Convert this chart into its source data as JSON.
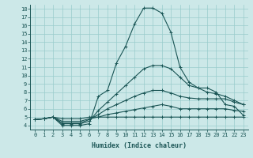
{
  "xlabel": "Humidex (Indice chaleur)",
  "bg_color": "#cce8e8",
  "grid_color": "#99cccc",
  "line_color": "#1a5555",
  "xlim": [
    -0.5,
    23.5
  ],
  "ylim": [
    3.5,
    18.5
  ],
  "xticks": [
    0,
    1,
    2,
    3,
    4,
    5,
    6,
    7,
    8,
    9,
    10,
    11,
    12,
    13,
    14,
    15,
    16,
    17,
    18,
    19,
    20,
    21,
    22,
    23
  ],
  "yticks": [
    4,
    5,
    6,
    7,
    8,
    9,
    10,
    11,
    12,
    13,
    14,
    15,
    16,
    17,
    18
  ],
  "series": [
    [
      4.7,
      4.8,
      5.0,
      4.0,
      4.0,
      4.0,
      4.2,
      7.5,
      8.2,
      11.5,
      13.5,
      16.2,
      18.1,
      18.1,
      17.5,
      15.2,
      11.0,
      9.2,
      8.5,
      8.5,
      8.0,
      6.5,
      6.3,
      5.2
    ],
    [
      4.7,
      4.8,
      5.0,
      4.2,
      4.2,
      4.2,
      4.5,
      5.8,
      6.8,
      7.8,
      8.8,
      9.8,
      10.8,
      11.2,
      11.2,
      10.8,
      9.8,
      8.8,
      8.5,
      8.0,
      7.8,
      7.5,
      7.0,
      6.5
    ],
    [
      4.7,
      4.8,
      5.0,
      4.3,
      4.3,
      4.3,
      4.7,
      5.3,
      6.0,
      6.5,
      7.0,
      7.5,
      7.9,
      8.2,
      8.2,
      7.9,
      7.5,
      7.3,
      7.2,
      7.2,
      7.2,
      7.2,
      6.8,
      6.5
    ],
    [
      4.7,
      4.8,
      5.0,
      4.5,
      4.5,
      4.5,
      4.8,
      5.0,
      5.3,
      5.5,
      5.7,
      5.9,
      6.1,
      6.3,
      6.5,
      6.3,
      6.0,
      6.0,
      6.0,
      6.0,
      6.0,
      6.0,
      5.8,
      5.7
    ],
    [
      4.7,
      4.8,
      5.0,
      4.8,
      4.8,
      4.8,
      5.0,
      5.0,
      5.0,
      5.0,
      5.0,
      5.0,
      5.0,
      5.0,
      5.0,
      5.0,
      5.0,
      5.0,
      5.0,
      5.0,
      5.0,
      5.0,
      5.0,
      5.0
    ]
  ]
}
